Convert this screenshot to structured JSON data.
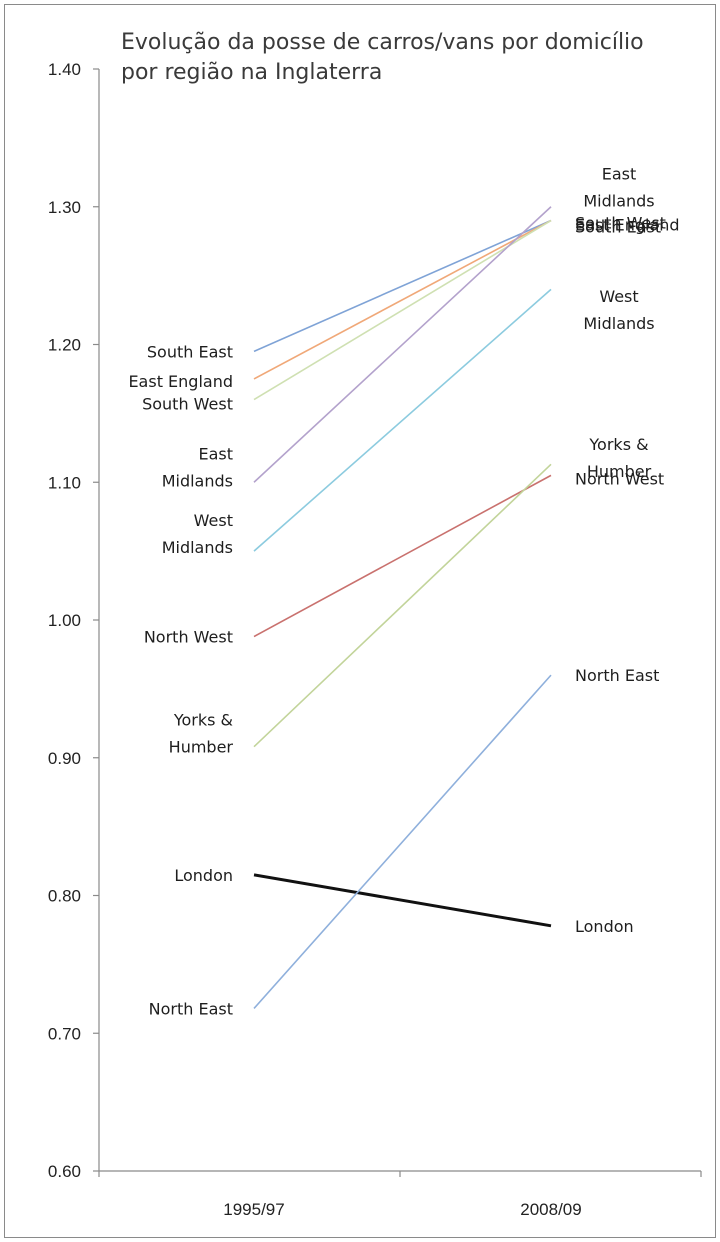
{
  "chart_data": {
    "type": "line",
    "title_lines": [
      "Evolução da posse de carros/vans por domicílio",
      "por região na Inglaterra"
    ],
    "categories": [
      "1995/97",
      "2008/09"
    ],
    "ylim": [
      0.6,
      1.4
    ],
    "yticks": [
      "0.60",
      "0.70",
      "0.80",
      "0.90",
      "1.00",
      "1.10",
      "1.20",
      "1.30",
      "1.40"
    ],
    "series": [
      {
        "name": "South East",
        "start_label": [
          "South East"
        ],
        "end_label": [
          "South East"
        ],
        "values": [
          1.195,
          1.29
        ],
        "color": "#7fa3d6"
      },
      {
        "name": "East England",
        "start_label": [
          "East England"
        ],
        "end_label": [
          "East England"
        ],
        "values": [
          1.175,
          1.29
        ],
        "color": "#f0a878"
      },
      {
        "name": "South West",
        "start_label": [
          "South West"
        ],
        "end_label": [
          "South West"
        ],
        "values": [
          1.16,
          1.29
        ],
        "color": "#cfe0b2"
      },
      {
        "name": "East Midlands",
        "start_label": [
          "East",
          "Midlands"
        ],
        "end_label": [
          "East",
          "Midlands"
        ],
        "values": [
          1.1,
          1.3
        ],
        "color": "#b3a2cc"
      },
      {
        "name": "West Midlands",
        "start_label": [
          "West",
          "Midlands"
        ],
        "end_label": [
          "West",
          "Midlands"
        ],
        "values": [
          1.05,
          1.24
        ],
        "color": "#8ccbdf"
      },
      {
        "name": "North West",
        "start_label": [
          "North West"
        ],
        "end_label": [
          "North West"
        ],
        "values": [
          0.988,
          1.105
        ],
        "color": "#c9716e"
      },
      {
        "name": "Yorks & Humber",
        "start_label": [
          "Yorks &",
          "Humber"
        ],
        "end_label": [
          "Yorks &",
          "Humber"
        ],
        "values": [
          0.908,
          1.113
        ],
        "color": "#c2d49a"
      },
      {
        "name": "London",
        "start_label": [
          "London"
        ],
        "end_label": [
          "London"
        ],
        "values": [
          0.815,
          0.778
        ],
        "color": "#111111"
      },
      {
        "name": "North East",
        "start_label": [
          "North East"
        ],
        "end_label": [
          "North East"
        ],
        "values": [
          0.718,
          0.96
        ],
        "color": "#8fb0dc"
      }
    ],
    "grid": false,
    "legend": "none (direct labels at both ends of each line)"
  }
}
